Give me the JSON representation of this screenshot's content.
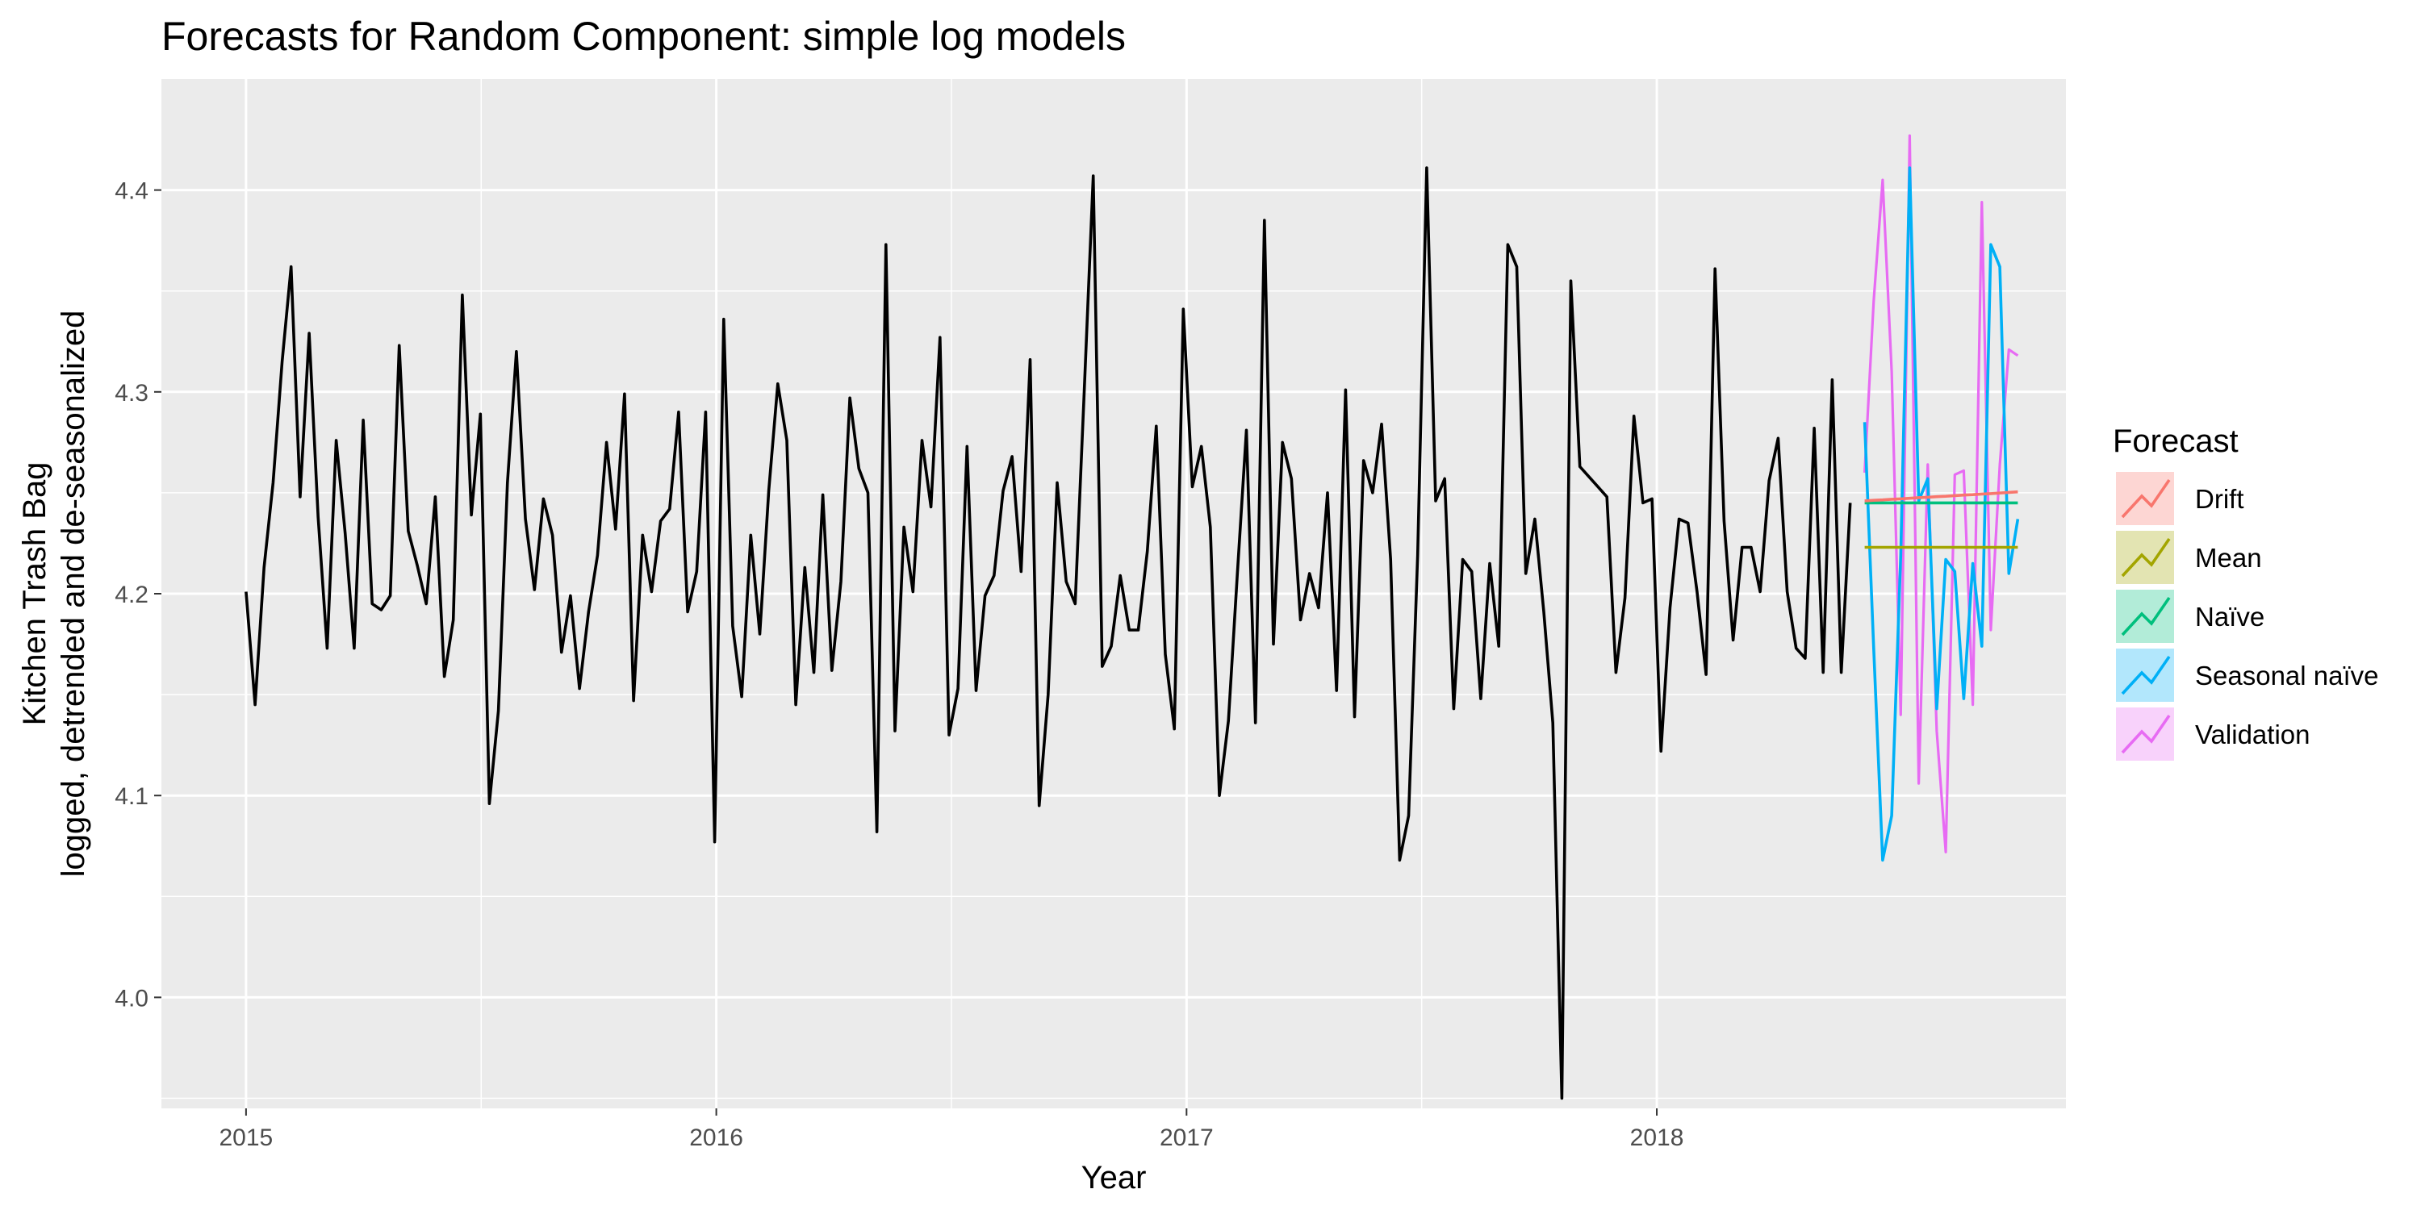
{
  "chart_data": {
    "type": "line",
    "title": "Forecasts for Random Component: simple log models",
    "xlabel": "Year",
    "ylabel_line1": "Kitchen Trash Bag",
    "ylabel_line2": "logged, detrended and de-seasonalized",
    "xlim": [
      2014.82,
      2018.87
    ],
    "ylim": [
      3.945,
      4.455
    ],
    "x_ticks": [
      2015,
      2016,
      2017,
      2018
    ],
    "x_tick_labels": [
      "2015",
      "2016",
      "2017",
      "2018"
    ],
    "y_ticks": [
      4.0,
      4.1,
      4.2,
      4.3,
      4.4
    ],
    "y_tick_labels": [
      "4.0",
      "4.1",
      "4.2",
      "4.3",
      "4.4"
    ],
    "grid": true,
    "legend_position": "right",
    "legend": {
      "title": "Forecast",
      "entries": [
        {
          "label": "Drift",
          "color": "#F8766D"
        },
        {
          "label": "Mean",
          "color": "#A3A500"
        },
        {
          "label": "Naïve",
          "color": "#00BF7D"
        },
        {
          "label": "Seasonal naïve",
          "color": "#00B0F6"
        },
        {
          "label": "Validation",
          "color": "#E76BF3"
        }
      ]
    },
    "history": {
      "color": "#000000",
      "x_start": 2015.0,
      "x_step": 0.019165,
      "values": [
        4.201,
        4.145,
        4.213,
        4.255,
        4.315,
        4.362,
        4.248,
        4.329,
        4.238,
        4.173,
        4.276,
        4.23,
        4.173,
        4.286,
        4.195,
        4.192,
        4.199,
        4.323,
        4.231,
        4.214,
        4.195,
        4.248,
        4.159,
        4.187,
        4.348,
        4.239,
        4.289,
        4.096,
        4.142,
        4.255,
        4.32,
        4.237,
        4.202,
        4.247,
        4.229,
        4.171,
        4.199,
        4.153,
        4.191,
        4.219,
        4.275,
        4.232,
        4.299,
        4.147,
        4.229,
        4.201,
        4.236,
        4.242,
        4.29,
        4.191,
        4.211,
        4.29,
        4.077,
        4.336,
        4.184,
        4.149,
        4.229,
        4.18,
        4.251,
        4.304,
        4.276,
        4.145,
        4.213,
        4.161,
        4.249,
        4.162,
        4.206,
        4.297,
        4.262,
        4.25,
        4.082,
        4.373,
        4.132,
        4.233,
        4.201,
        4.276,
        4.243,
        4.327,
        4.13,
        4.153,
        4.273,
        4.152,
        4.199,
        4.209,
        4.251,
        4.268,
        4.211,
        4.316,
        4.095,
        4.15,
        4.255,
        4.206,
        4.195,
        4.3,
        4.407,
        4.164,
        4.174,
        4.209,
        4.182,
        4.182,
        4.221,
        4.283,
        4.17,
        4.133,
        4.341,
        4.253,
        4.273,
        4.233,
        4.1,
        4.137,
        4.21,
        4.281,
        4.136,
        4.385,
        4.175,
        4.275,
        4.257,
        4.187,
        4.21,
        4.193,
        4.25,
        4.152,
        4.301,
        4.139,
        4.266,
        4.25,
        4.284,
        4.217,
        4.068,
        4.09,
        4.219,
        4.411,
        4.246,
        4.257,
        4.143,
        4.217,
        4.211,
        4.148,
        4.215,
        4.174,
        4.373,
        4.362,
        4.21,
        4.237,
        4.191,
        4.136,
        3.95,
        4.355,
        4.263,
        4.258,
        4.253,
        4.248,
        4.161,
        4.198,
        4.288,
        4.245,
        4.247,
        4.122,
        4.193,
        4.237,
        4.235,
        4.201,
        4.16,
        4.361,
        4.236,
        4.177,
        4.223,
        4.223,
        4.201,
        4.256,
        4.277,
        4.201,
        4.173,
        4.168,
        4.282,
        4.161,
        4.306,
        4.161,
        4.245
      ]
    },
    "forecasts": {
      "x_start": 2018.442,
      "x_step": 0.019165,
      "series": [
        {
          "name": "Validation",
          "color": "#E76BF3",
          "width": 3.2,
          "values": [
            4.26,
            4.345,
            4.405,
            4.31,
            4.14,
            4.427,
            4.106,
            4.264,
            4.132,
            4.072,
            4.259,
            4.261,
            4.145,
            4.394,
            4.182,
            4.264,
            4.321,
            4.318
          ]
        },
        {
          "name": "Seasonal naïve",
          "color": "#00B0F6",
          "width": 3.6,
          "values": [
            4.285,
            4.173,
            4.068,
            4.09,
            4.219,
            4.411,
            4.246,
            4.257,
            4.143,
            4.217,
            4.211,
            4.148,
            4.215,
            4.174,
            4.373,
            4.362,
            4.21,
            4.237
          ]
        },
        {
          "name": "Naïve",
          "color": "#00BF7D",
          "width": 3.6,
          "values": [
            4.245,
            4.245,
            4.245,
            4.245,
            4.245,
            4.245,
            4.245,
            4.245,
            4.245,
            4.245,
            4.245,
            4.245,
            4.245,
            4.245,
            4.245,
            4.245,
            4.245,
            4.245
          ]
        },
        {
          "name": "Mean",
          "color": "#A3A500",
          "width": 3.6,
          "values": [
            4.223,
            4.223,
            4.223,
            4.223,
            4.223,
            4.223,
            4.223,
            4.223,
            4.223,
            4.223,
            4.223,
            4.223,
            4.223,
            4.223,
            4.223,
            4.223,
            4.223,
            4.223
          ]
        },
        {
          "name": "Drift",
          "color": "#F8766D",
          "width": 3.6,
          "values": [
            4.246,
            4.2463,
            4.2465,
            4.2468,
            4.247,
            4.2473,
            4.2476,
            4.2478,
            4.2481,
            4.2483,
            4.2486,
            4.2489,
            4.2491,
            4.2494,
            4.2496,
            4.2499,
            4.2502,
            4.2505
          ]
        }
      ]
    }
  }
}
